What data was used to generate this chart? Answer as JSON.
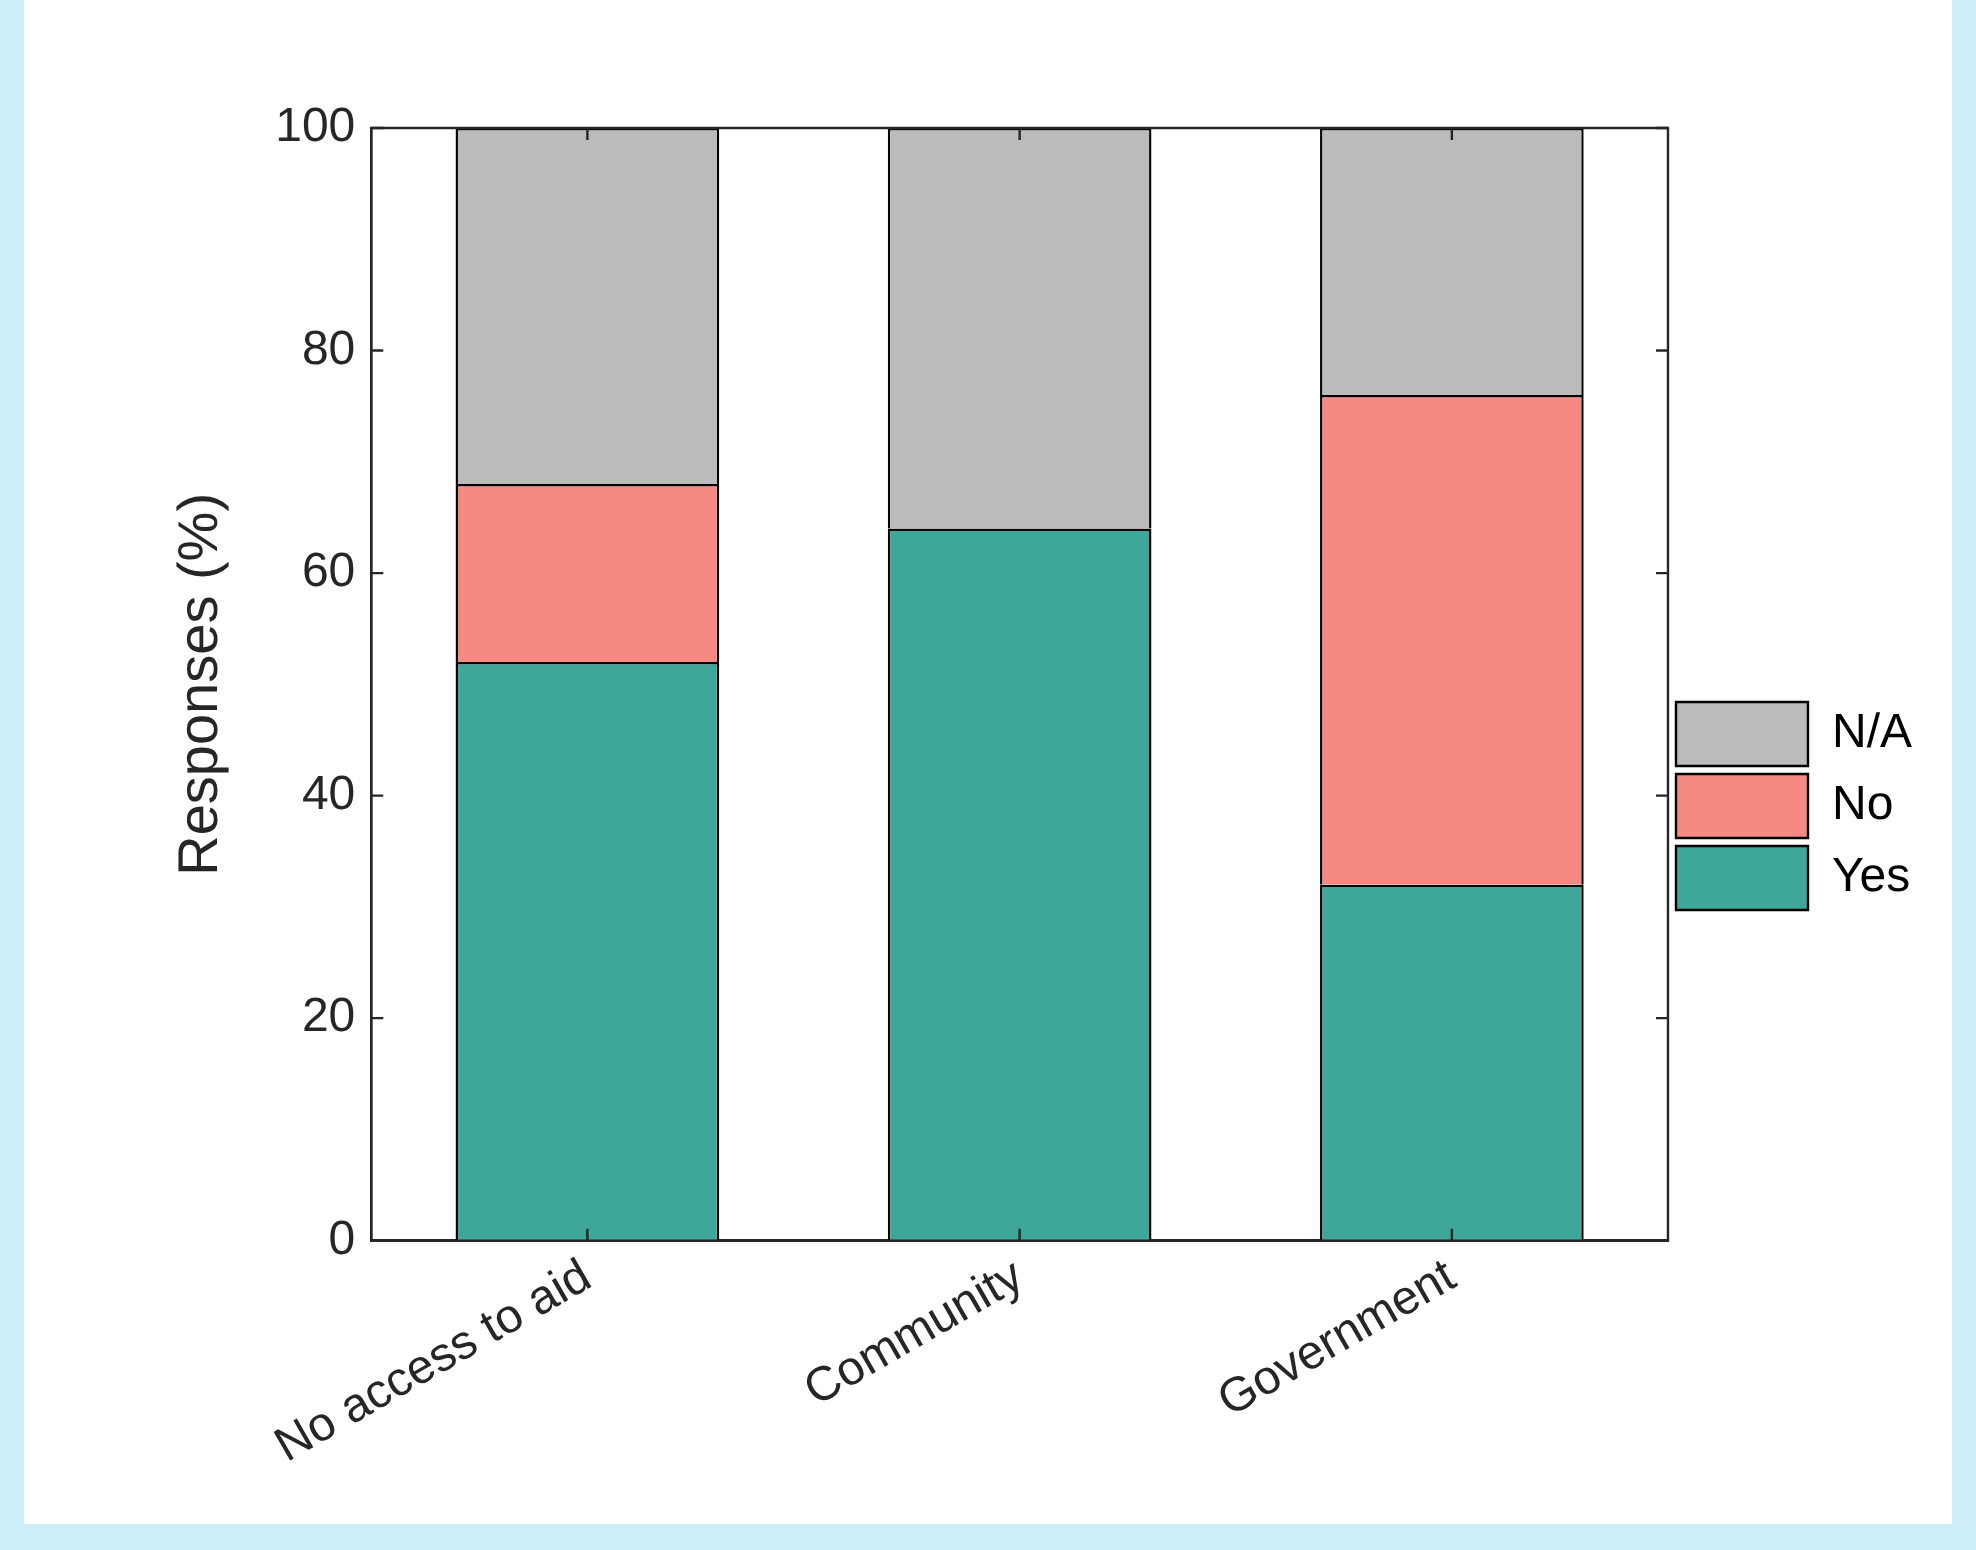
{
  "chart_data": {
    "type": "bar",
    "ylabel": "Responses (%)",
    "categories": [
      "No access to aid",
      "Community",
      "Government"
    ],
    "series": [
      {
        "name": "Yes",
        "color": "#3ea799",
        "values": [
          52,
          64,
          32
        ]
      },
      {
        "name": "No",
        "color": "#f68981",
        "values": [
          16,
          0,
          44
        ]
      },
      {
        "name": "N/A",
        "color": "#bbbbbb",
        "values": [
          32,
          36,
          24
        ]
      }
    ],
    "stacked": true,
    "ylim": [
      0,
      100
    ],
    "yticks": [
      0,
      20,
      40,
      60,
      80,
      100
    ],
    "grid": false,
    "legend": "right"
  }
}
